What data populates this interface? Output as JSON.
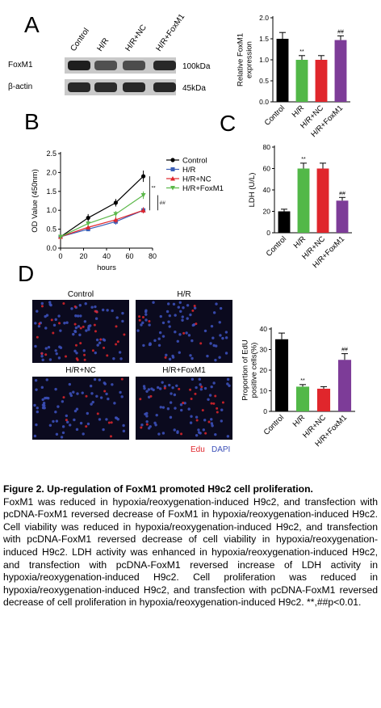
{
  "panels": {
    "A": {
      "letter": "A",
      "lanes": [
        "Control",
        "H/R",
        "H/R+NC",
        "H/R+FoxM1"
      ],
      "rows": [
        {
          "label": "FoxM1",
          "kda": "100kDa",
          "intensity": [
            0.85,
            0.6,
            0.62,
            0.8
          ]
        },
        {
          "label": "β-actin",
          "kda": "45kDa",
          "intensity": [
            0.8,
            0.78,
            0.8,
            0.8
          ]
        }
      ]
    },
    "B": {
      "letter": "B"
    },
    "C": {
      "letter": "C"
    },
    "D": {
      "letter": "D",
      "image_labels": [
        "Control",
        "H/R",
        "H/R+NC",
        "H/R+FoxM1"
      ],
      "legend": {
        "edu": "Edu",
        "dapi": "DAPI"
      }
    }
  },
  "colors": {
    "Control": "#000000",
    "H/R": "#52b848",
    "H/R+NC": "#e0262c",
    "H/R+FoxM1": "#7d3c98",
    "line_HR": "#3b5fb8",
    "line_HRNC": "#e0262c",
    "line_HRFoxM1": "#5cb84a",
    "edu": "#e0262c",
    "dapi": "#3b4fb8"
  },
  "chart_data": [
    {
      "id": "A-bar",
      "type": "bar",
      "categories": [
        "Control",
        "H/R",
        "H/R+NC",
        "H/R+FoxM1"
      ],
      "values": [
        1.5,
        1.0,
        1.0,
        1.47
      ],
      "errors": [
        0.15,
        0.1,
        0.1,
        0.1
      ],
      "marks": [
        "",
        "**",
        "",
        "##"
      ],
      "ylabel": "Relative FoxM1 expression",
      "yticks": [
        "0.0",
        "0.5",
        "1.0",
        "1.5",
        "2.0"
      ],
      "ylim": [
        0,
        2
      ]
    },
    {
      "id": "B-line",
      "type": "line",
      "x": [
        0,
        24,
        48,
        72
      ],
      "series": [
        {
          "name": "Control",
          "values": [
            0.3,
            0.8,
            1.2,
            1.9
          ],
          "errors": [
            0.05,
            0.1,
            0.1,
            0.15
          ]
        },
        {
          "name": "H/R",
          "values": [
            0.3,
            0.5,
            0.7,
            1.0
          ],
          "errors": [
            0.05,
            0.05,
            0.08,
            0.08
          ]
        },
        {
          "name": "H/R+NC",
          "values": [
            0.3,
            0.55,
            0.75,
            1.0
          ],
          "errors": [
            0.05,
            0.05,
            0.08,
            0.08
          ]
        },
        {
          "name": "H/R+FoxM1",
          "values": [
            0.3,
            0.65,
            0.9,
            1.4
          ],
          "errors": [
            0.05,
            0.05,
            0.08,
            0.1
          ]
        }
      ],
      "xlabel": "hours",
      "ylabel": "OD Value (450nm)",
      "xticks": [
        "0",
        "20",
        "40",
        "60",
        "80"
      ],
      "yticks": [
        "0.0",
        "0.5",
        "1.0",
        "1.5",
        "2.0",
        "2.5"
      ],
      "xlim": [
        0,
        80
      ],
      "ylim": [
        0,
        2.5
      ],
      "annotations": [
        "**",
        "##"
      ]
    },
    {
      "id": "C-bar",
      "type": "bar",
      "categories": [
        "Control",
        "H/R",
        "H/R+NC",
        "H/R+FoxM1"
      ],
      "values": [
        20,
        60,
        60,
        30
      ],
      "errors": [
        2,
        5,
        5,
        3
      ],
      "marks": [
        "",
        "**",
        "",
        "##"
      ],
      "ylabel": "LDH (U/L)",
      "yticks": [
        "0",
        "20",
        "40",
        "60",
        "80"
      ],
      "ylim": [
        0,
        80
      ]
    },
    {
      "id": "D-bar",
      "type": "bar",
      "categories": [
        "Control",
        "H/R",
        "H/R+NC",
        "H/R+FoxM1"
      ],
      "values": [
        35,
        12,
        11,
        25
      ],
      "errors": [
        3,
        1,
        1,
        3
      ],
      "marks": [
        "",
        "**",
        "",
        "##"
      ],
      "ylabel": "Proportion of EdU positive cells(%)",
      "yticks": [
        "0",
        "10",
        "20",
        "30",
        "40"
      ],
      "ylim": [
        0,
        40
      ]
    }
  ],
  "caption": {
    "title": "Figure 2. Up-regulation of FoxM1 promoted H9c2 cell proliferation.",
    "body": "FoxM1 was reduced in hypoxia/reoxygenation-induced H9c2, and transfection with pcDNA-FoxM1 reversed decrease of FoxM1 in hypoxia/reoxygenation-induced H9c2. Cell viability was reduced in hypoxia/reoxygenation-induced H9c2, and transfection with pcDNA-FoxM1 reversed decrease of cell viability in hypoxia/reoxygenation-induced H9c2. LDH activity was enhanced in hypoxia/reoxygenation-induced H9c2, and transfection with pcDNA-FoxM1 reversed increase of LDH activity in hypoxia/reoxygenation-induced H9c2. Cell proliferation was reduced in hypoxia/reoxygenation-induced H9c2, and transfection with pcDNA-FoxM1 reversed decrease of cell proliferation in hypoxia/reoxygenation-induced H9c2. **,##p<0.01."
  }
}
